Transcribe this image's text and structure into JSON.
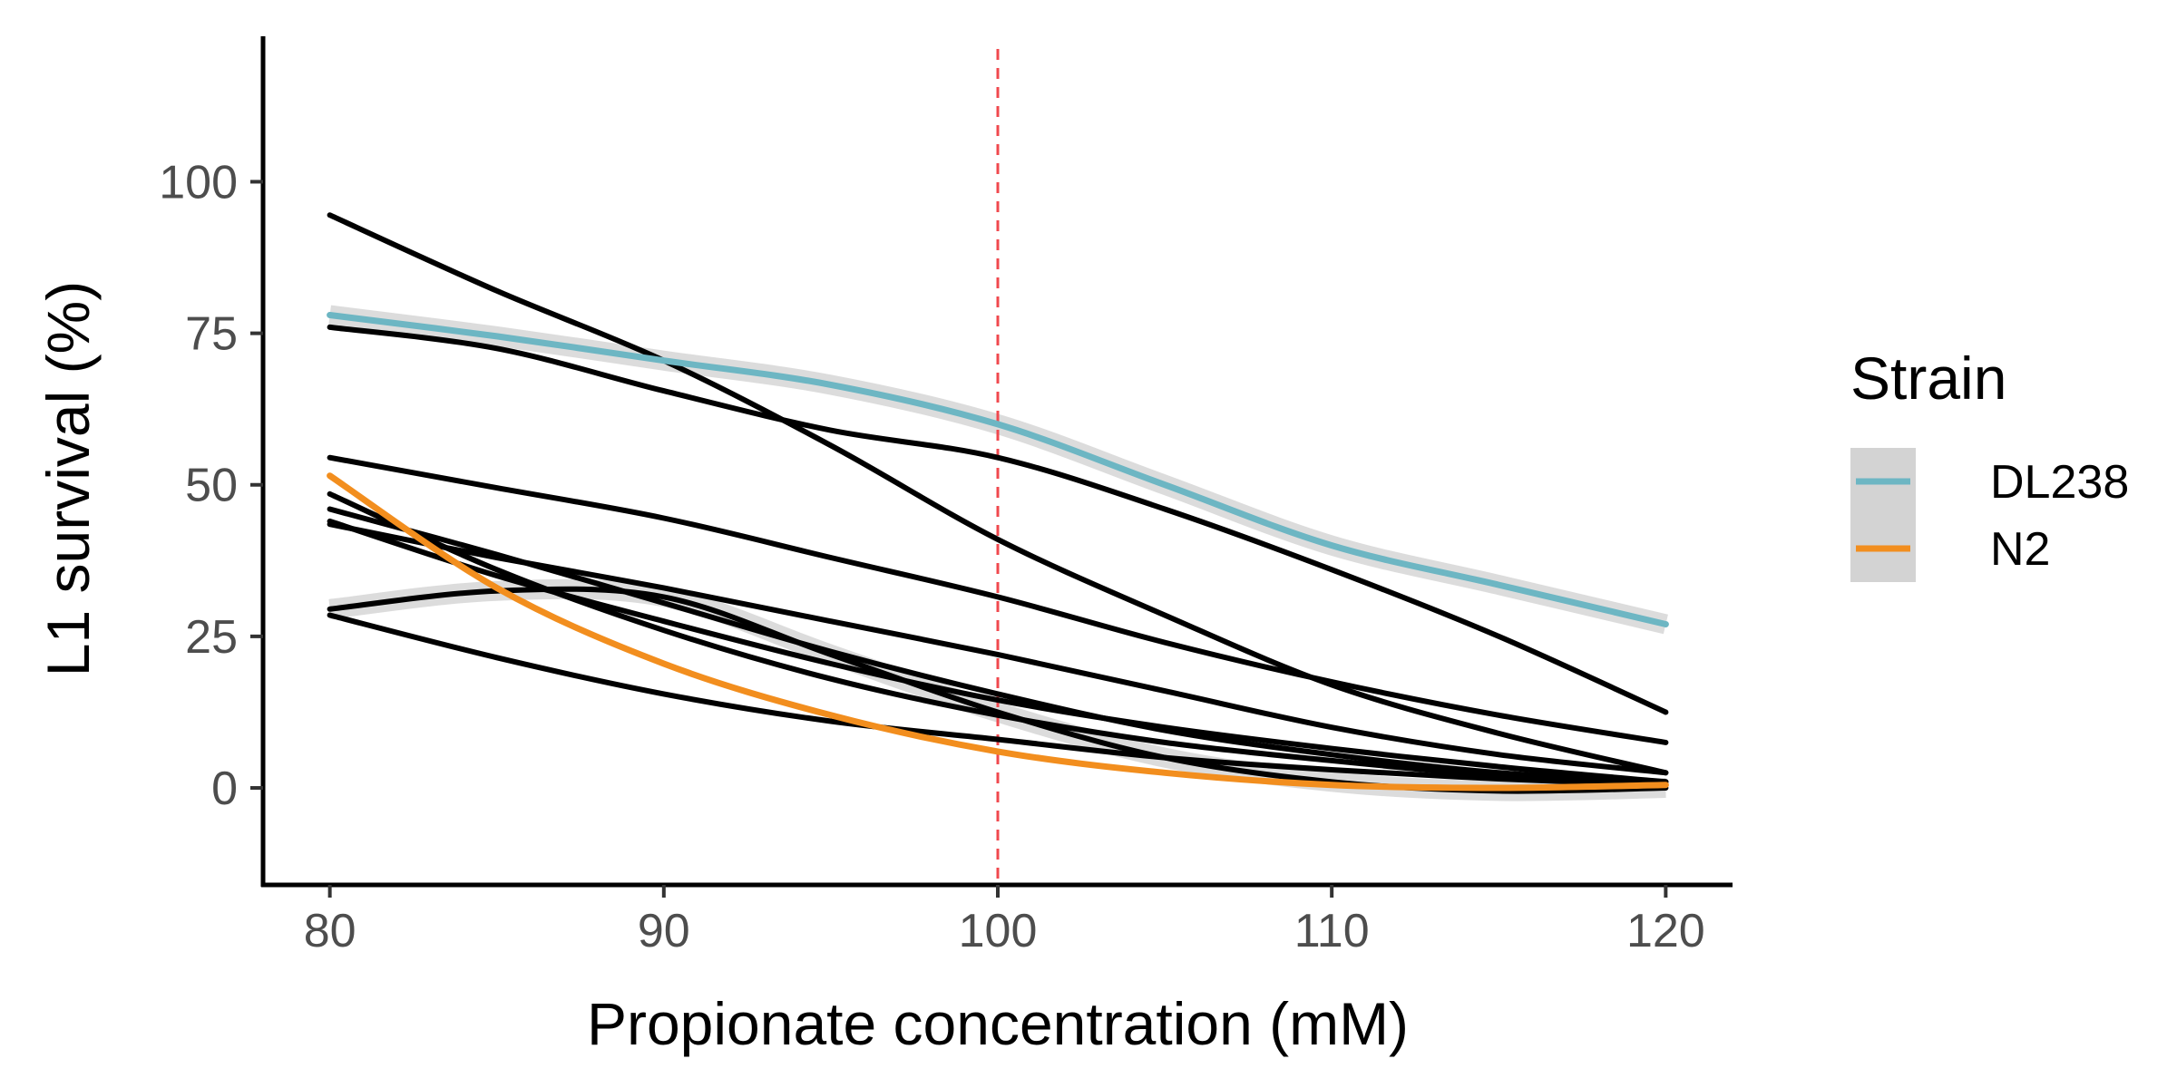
{
  "chart_data": {
    "type": "line",
    "title": "",
    "xlabel": "Propionate concentration (mM)",
    "ylabel": "L1 survival (%)",
    "xlim": [
      78,
      122
    ],
    "ylim": [
      -16,
      124
    ],
    "x_ticks": [
      80,
      90,
      100,
      110,
      120
    ],
    "y_ticks": [
      0,
      25,
      50,
      75,
      100
    ],
    "grid": false,
    "reference_line": {
      "axis": "x",
      "value": 100,
      "style": "dashed",
      "color": "#f0484e"
    },
    "legend": {
      "title": "Strain",
      "placement": "right",
      "entries": [
        {
          "label": "DL238",
          "color": "#6db6c3"
        },
        {
          "label": "N2",
          "color": "#f28e1e"
        }
      ]
    },
    "x": [
      80,
      85,
      90,
      95,
      100,
      105,
      110,
      115,
      120
    ],
    "series": [
      {
        "name": "DL238",
        "color": "#6db6c3",
        "band": true,
        "values": [
          78,
          74.5,
          70.5,
          66.5,
          60,
          50,
          40,
          33.5,
          27
        ]
      },
      {
        "name": "N2",
        "color": "#f28e1e",
        "band": false,
        "values": [
          51.5,
          33,
          20.5,
          12,
          6,
          2.5,
          0.5,
          0,
          0.5
        ]
      },
      {
        "color": "#000000",
        "band": false,
        "values": [
          94.5,
          82,
          70.5,
          56.5,
          41,
          28.5,
          17,
          9,
          2.5
        ]
      },
      {
        "color": "#000000",
        "band": false,
        "values": [
          76,
          72.5,
          65.5,
          59,
          54.5,
          46,
          36,
          25,
          12.5
        ]
      },
      {
        "color": "#000000",
        "band": false,
        "values": [
          54.5,
          49.5,
          44.5,
          38,
          31.5,
          24,
          17.5,
          12,
          7.5
        ]
      },
      {
        "color": "#000000",
        "band": true,
        "values": [
          29.5,
          32.5,
          31.5,
          22,
          12.5,
          5,
          1,
          -0.5,
          0
        ]
      },
      {
        "color": "#000000",
        "band": false,
        "values": [
          28.5,
          21.5,
          15.5,
          11,
          8,
          5,
          3,
          1.5,
          0.5
        ]
      },
      {
        "color": "#000000",
        "band": false,
        "values": [
          48.5,
          36,
          26,
          18,
          12,
          7.5,
          4.5,
          2,
          0.5
        ]
      },
      {
        "color": "#000000",
        "band": false,
        "values": [
          46,
          38.5,
          30.5,
          22.5,
          15.5,
          9.5,
          5.5,
          2.5,
          1
        ]
      },
      {
        "color": "#000000",
        "band": false,
        "values": [
          44,
          35,
          27.5,
          20.5,
          14.5,
          10,
          6.5,
          3.5,
          1
        ]
      },
      {
        "color": "#000000",
        "band": false,
        "values": [
          43.5,
          38,
          33,
          27.5,
          22,
          16,
          10,
          5.5,
          2.5
        ]
      }
    ]
  }
}
